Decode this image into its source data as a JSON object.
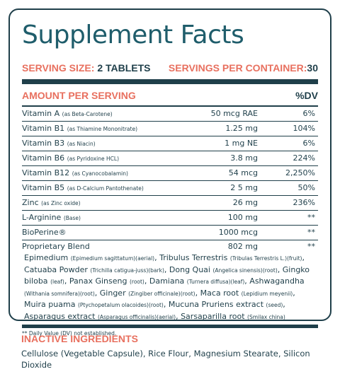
{
  "title": "Supplement Facts",
  "serving": {
    "size_label": "SERVING SIZE: ",
    "size_value": "2 TABLETS",
    "per_container_label": "SERVINGS PER CONTAINER:",
    "per_container_value": "30"
  },
  "header": {
    "amount_label": "AMOUNT PER SERVING",
    "dv_label": "%DV"
  },
  "nutrients": [
    {
      "name": "Vitamin A",
      "note": "(as Beta-Carotene)",
      "amount": "50 mcg RAE",
      "dv": "6%"
    },
    {
      "name": "Vitamin B1",
      "note": "(as Thiamine Mononitrate)",
      "amount": "1.25 mg",
      "dv": "104%"
    },
    {
      "name": "Vitamin B3",
      "note": "(as Niacin)",
      "amount": "1 mg NE",
      "dv": "6%"
    },
    {
      "name": "Vitamin B6",
      "note": "(as Pyridoxine HCL)",
      "amount": "3.8 mg",
      "dv": "224%"
    },
    {
      "name": "Vitamin B12",
      "note": "(as Cyanocobalamin)",
      "amount": "54 mcg",
      "dv": "2,250%"
    },
    {
      "name": "Vitamin B5",
      "note": "(as D-Calcium Pantothenate)",
      "amount": "2 5 mg",
      "dv": "50%"
    },
    {
      "name": "Zinc",
      "note": "(as Zinc oxide)",
      "amount": "26 mg",
      "dv": "236%"
    },
    {
      "name": "L-Arginine",
      "note": "(Base)",
      "amount": "100 mg",
      "dv": "**"
    },
    {
      "name": "BioPerine®",
      "note": "",
      "amount": "1000 mcg",
      "dv": "**"
    }
  ],
  "blend": {
    "name": "Proprietary Blend",
    "amount": "802 mg",
    "dv": "**",
    "ingredients": [
      {
        "name": "Epimedium",
        "note": "(Epimedium sagittatum)(aerial)"
      },
      {
        "name": "Tribulus Terrestris",
        "note": "(Tribulas Terrestris L.)(fruit)"
      },
      {
        "name": "Catuaba Powder",
        "note": "(Trichilla catigua-juss)(bark)"
      },
      {
        "name": "Dong Quai",
        "note": "(Angelica sinensis)(root)"
      },
      {
        "name": "Gingko biloba",
        "note": "(leaf)"
      },
      {
        "name": "Panax Ginseng",
        "note": "(root)"
      },
      {
        "name": "Damiana",
        "note": "(Turnera diffusa)(leaf)"
      },
      {
        "name": "Ashwagandha",
        "note": "(Withania somnifera)(root)"
      },
      {
        "name": "Ginger",
        "note": "(Zingiber officinale)(root)"
      },
      {
        "name": "Maca root",
        "note": "(Lepidium meyenii)"
      },
      {
        "name": "Muira puama",
        "note": "(Ptychopetalum olacoides)(root)"
      },
      {
        "name": "Mucuna Pruriens extract",
        "note": "(seed)"
      },
      {
        "name": "Asparagus extract",
        "note": "(Asparagus officinalis)(aerial)"
      },
      {
        "name": "Sarsaparilla root",
        "note": "(Smilax china)"
      }
    ]
  },
  "footnote": "** Daily Value (DV) not established.",
  "inactive": {
    "title": "INACTIVE INGREDIENTS",
    "text": "Cellulose (Vegetable Capsule), Rice Flour, Magnesium Stearate, Silicon Dioxide"
  },
  "colors": {
    "accent": "#e8705f",
    "text": "#1f3f4a",
    "title": "#1f5d6b"
  }
}
